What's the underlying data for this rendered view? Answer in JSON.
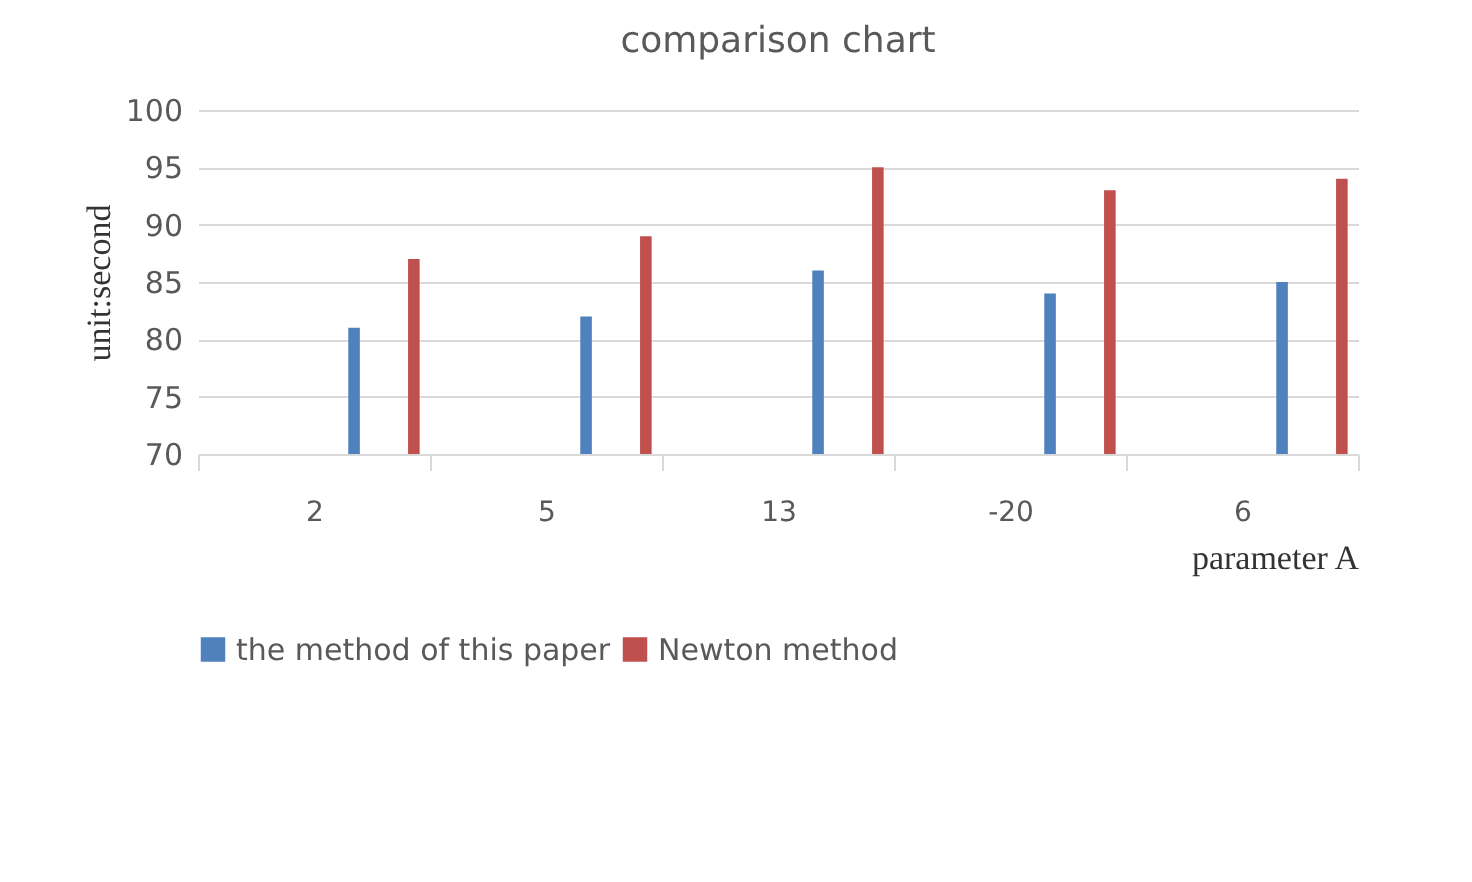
{
  "chart_data": {
    "type": "bar",
    "title": "comparison chart",
    "xlabel": "parameter A",
    "ylabel": "unit:second",
    "categories": [
      "2",
      "5",
      "13",
      "-20",
      "6"
    ],
    "series": [
      {
        "name": "the method of this paper",
        "color": "#4f81bd",
        "values": [
          81,
          82,
          86,
          84,
          85
        ]
      },
      {
        "name": "Newton method",
        "color": "#c0504d",
        "values": [
          87,
          89,
          95,
          93,
          94
        ]
      }
    ],
    "ylim": [
      70,
      100
    ],
    "yticks": [
      70,
      75,
      80,
      85,
      90,
      95,
      100
    ],
    "grid": "y",
    "legend": "bottom"
  }
}
